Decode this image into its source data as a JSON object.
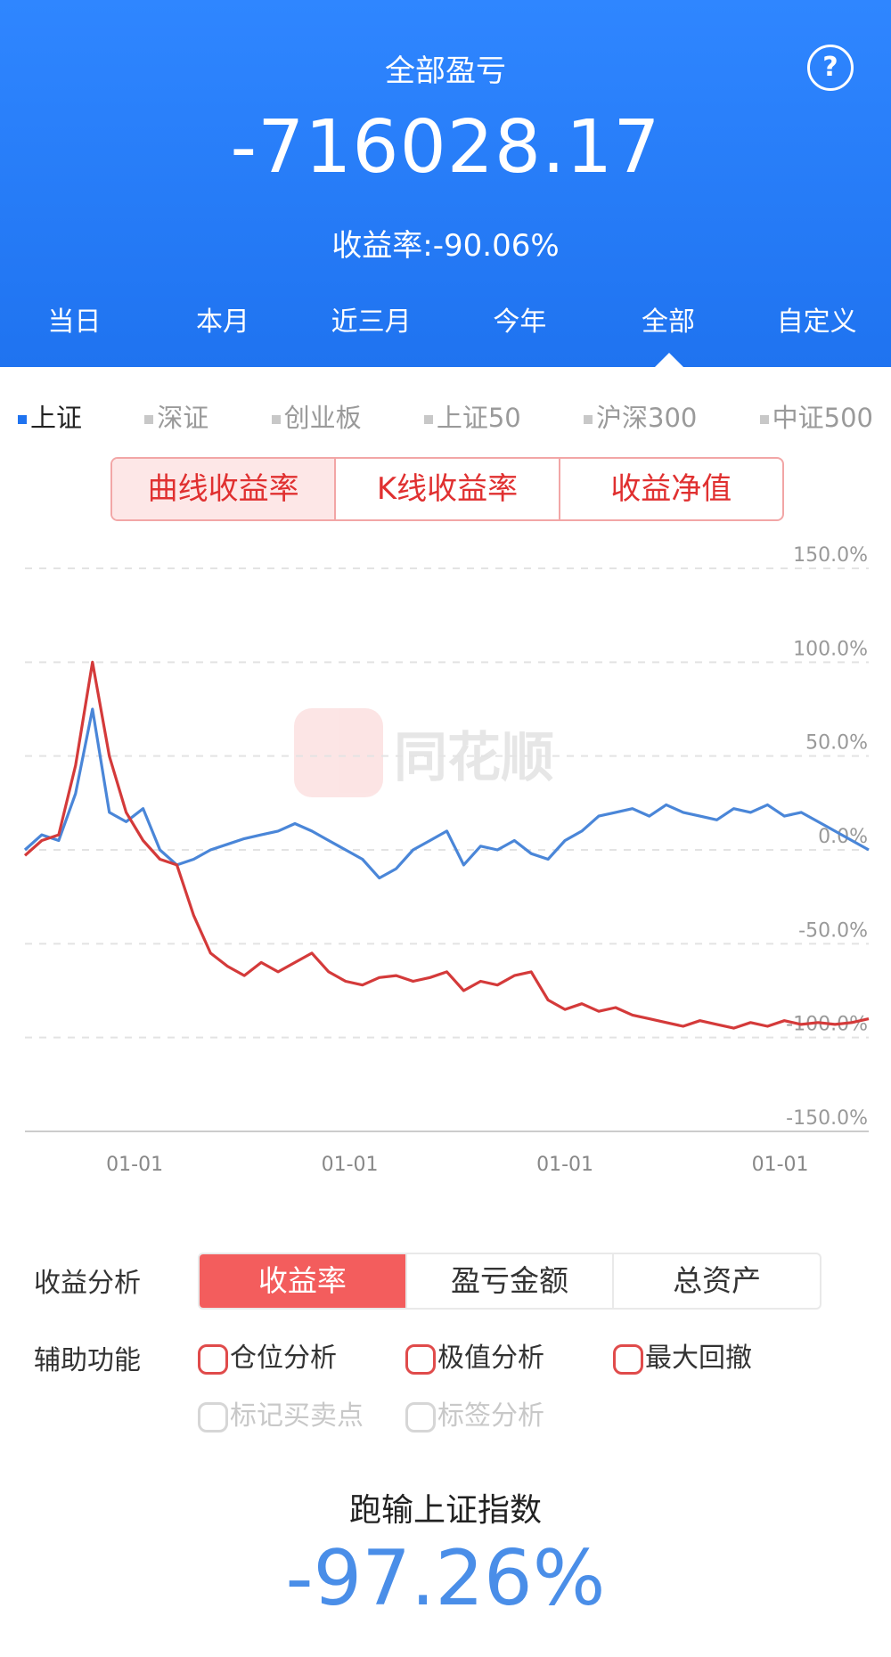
{
  "header": {
    "title": "全部盈亏",
    "help_symbol": "?",
    "total_pnl": "-716028.17",
    "return_rate": "收益率:-90.06%",
    "tabs": [
      "当日",
      "本月",
      "近三月",
      "今年",
      "全部",
      "自定义"
    ],
    "active_tab": "全部"
  },
  "indices": {
    "items": [
      "上证",
      "深证",
      "创业板",
      "上证50",
      "沪深300",
      "中证500"
    ],
    "active": "上证"
  },
  "chart_types": {
    "items": [
      "曲线收益率",
      "K线收益率",
      "收益净值"
    ],
    "active": "曲线收益率"
  },
  "watermark": {
    "text": "同花顺"
  },
  "colors": {
    "accent_blue": "#1f73f0",
    "red": "#d43a3a",
    "line_blue": "#4a86d8",
    "button_red": "#f35d5d"
  },
  "chart_data": {
    "type": "line",
    "ylim": [
      -150,
      150
    ],
    "y_ticks": [
      "150.0%",
      "100.0%",
      "50.0%",
      "0.0%",
      "-50.0%",
      "-100.0%",
      "-150.0%"
    ],
    "x_tick_labels": [
      "01-01",
      "01-01",
      "01-01",
      "01-01"
    ],
    "x": [
      0,
      4,
      8,
      12,
      16,
      20,
      24,
      28,
      32,
      36,
      40,
      44,
      48,
      52,
      56,
      60,
      64,
      68,
      72,
      76,
      80,
      84,
      88,
      92,
      96,
      100,
      104,
      108,
      112,
      116,
      120,
      124,
      128,
      132,
      136,
      140,
      144,
      148,
      152,
      156,
      160,
      164,
      168,
      172,
      176,
      180,
      184,
      188,
      192,
      196,
      200
    ],
    "series": [
      {
        "color": "#4a86d8",
        "values": [
          0,
          8,
          5,
          30,
          75,
          20,
          15,
          22,
          0,
          -8,
          -5,
          0,
          3,
          6,
          8,
          10,
          14,
          10,
          5,
          0,
          -5,
          -15,
          -10,
          0,
          5,
          10,
          -8,
          2,
          0,
          5,
          -2,
          -5,
          5,
          10,
          18,
          20,
          22,
          18,
          24,
          20,
          18,
          16,
          22,
          20,
          24,
          18,
          20,
          15,
          10,
          5,
          0
        ]
      },
      {
        "color": "#d43a3a",
        "values": [
          -3,
          5,
          8,
          45,
          100,
          50,
          20,
          5,
          -5,
          -8,
          -35,
          -55,
          -62,
          -67,
          -60,
          -65,
          -60,
          -55,
          -65,
          -70,
          -72,
          -68,
          -67,
          -70,
          -68,
          -65,
          -75,
          -70,
          -72,
          -67,
          -65,
          -80,
          -85,
          -82,
          -86,
          -84,
          -88,
          -90,
          -92,
          -94,
          -91,
          -93,
          -95,
          -92,
          -94,
          -91,
          -93,
          -92,
          -93,
          -92,
          -90
        ]
      }
    ]
  },
  "analysis": {
    "label": "收益分析",
    "options": [
      "收益率",
      "盈亏金额",
      "总资产"
    ],
    "active": "收益率"
  },
  "aux": {
    "label": "辅助功能",
    "enabled": [
      "仓位分析",
      "极值分析",
      "最大回撤"
    ],
    "disabled": [
      "标记买卖点",
      "标签分析"
    ]
  },
  "summary": {
    "label": "跑输上证指数",
    "value": "-97.26%"
  }
}
